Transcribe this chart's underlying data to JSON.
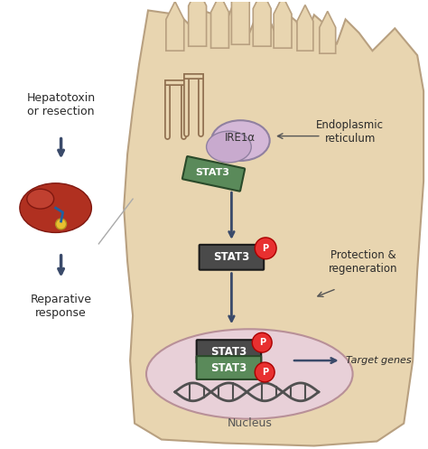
{
  "bg_color": "#ffffff",
  "cell_color": "#e8d5b0",
  "cell_outline": "#b8a080",
  "er_membrane_color": "#c8a878",
  "ire1_color": "#d4b8d8",
  "stat3_green_color": "#8ab88a",
  "stat3_dark_color": "#4a4a4a",
  "stat3_outline_color": "#2a2a2a",
  "p_circle_color": "#e83030",
  "p_text_color": "#ffffff",
  "nucleus_color": "#e8d0d8",
  "nucleus_outline": "#b89098",
  "dna_color": "#505050",
  "arrow_color": "#3a4a6a",
  "arrow_linewidth": 2.5,
  "liver_red": "#c04030",
  "text_color": "#2a2a2a",
  "label_fontsize": 9,
  "stat3_fontsize": 8,
  "title_text": "Hepatotoxin\nor resection",
  "reparative_text": "Reparative\nresponse",
  "er_label": "Endoplasmic\nreticulum",
  "ire1_label": "IRE1α",
  "protection_label": "Protection &\nregeneration",
  "nucleus_label": "Nucleus",
  "target_genes_label": "Target genes"
}
